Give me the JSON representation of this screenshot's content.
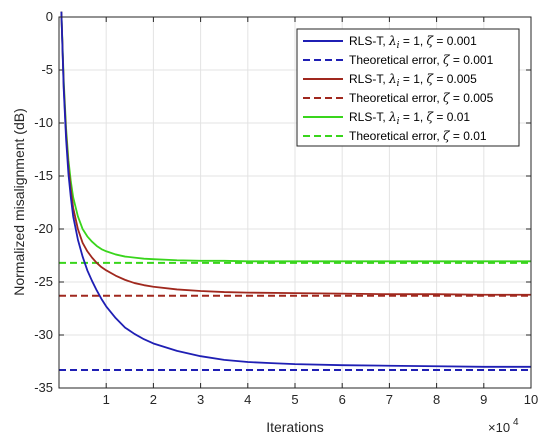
{
  "chart_data": {
    "type": "line",
    "xlabel": "Iterations",
    "ylabel": "Normalized misalignment (dB)",
    "x_multiplier_label": "×10",
    "x_multiplier_exp": "4",
    "xlim": [
      0,
      10
    ],
    "ylim": [
      -35,
      0
    ],
    "x_ticks": [
      "1",
      "2",
      "3",
      "4",
      "5",
      "6",
      "7",
      "8",
      "9",
      "10"
    ],
    "y_ticks": [
      "0",
      "-5",
      "-10",
      "-15",
      "-20",
      "-25",
      "-30",
      "-35"
    ],
    "grid": true,
    "legend_position": "top-right",
    "legend_entries": [
      {
        "label": "RLS-T, ",
        "sym1": "λ",
        "sub": "i",
        "eq1": " = 1, ",
        "sym2": "ζ",
        "eq2": " = 0.001",
        "color": "#1f1fb4",
        "dashed": false
      },
      {
        "label": "Theoretical error, ",
        "sym1": "",
        "sub": "",
        "eq1": "",
        "sym2": "ζ",
        "eq2": " = 0.001",
        "color": "#1f1fb4",
        "dashed": true
      },
      {
        "label": "RLS-T, ",
        "sym1": "λ",
        "sub": "i",
        "eq1": " = 1, ",
        "sym2": "ζ",
        "eq2": " = 0.005",
        "color": "#a0281e",
        "dashed": false
      },
      {
        "label": "Theoretical error, ",
        "sym1": "",
        "sub": "",
        "eq1": "",
        "sym2": "ζ",
        "eq2": " = 0.005",
        "color": "#a0281e",
        "dashed": true
      },
      {
        "label": "RLS-T, ",
        "sym1": "λ",
        "sub": "i",
        "eq1": " = 1, ",
        "sym2": "ζ",
        "eq2": " = 0.01",
        "color": "#39d51c",
        "dashed": false
      },
      {
        "label": "Theoretical error, ",
        "sym1": "",
        "sub": "",
        "eq1": "",
        "sym2": "ζ",
        "eq2": " = 0.01",
        "color": "#39d51c",
        "dashed": true
      }
    ],
    "series": [
      {
        "color": "#39d51c",
        "x": [
          0.05,
          0.1,
          0.15,
          0.2,
          0.25,
          0.3,
          0.4,
          0.5,
          0.6,
          0.7,
          0.8,
          0.9,
          1.0,
          1.2,
          1.4,
          1.6,
          1.8,
          2.0,
          2.5,
          3.0,
          3.5,
          4.0,
          5.0,
          6.0,
          7.0,
          8.0,
          9.0,
          10.0
        ],
        "values": [
          0.5,
          -6.0,
          -10.5,
          -13.5,
          -15.5,
          -17.0,
          -18.8,
          -20.0,
          -20.7,
          -21.2,
          -21.6,
          -21.9,
          -22.1,
          -22.4,
          -22.6,
          -22.7,
          -22.8,
          -22.85,
          -22.95,
          -23.0,
          -23.0,
          -23.05,
          -23.05,
          -23.05,
          -23.05,
          -23.05,
          -23.05,
          -23.05
        ]
      },
      {
        "color": "#a0281e",
        "x": [
          0.05,
          0.1,
          0.15,
          0.2,
          0.25,
          0.3,
          0.4,
          0.5,
          0.6,
          0.7,
          0.8,
          0.9,
          1.0,
          1.2,
          1.4,
          1.6,
          1.8,
          2.0,
          2.5,
          3.0,
          3.5,
          4.0,
          5.0,
          6.0,
          7.0,
          8.0,
          9.0,
          10.0
        ],
        "values": [
          0.5,
          -6.5,
          -11.0,
          -14.2,
          -16.3,
          -18.0,
          -20.0,
          -21.3,
          -22.1,
          -22.7,
          -23.2,
          -23.6,
          -23.9,
          -24.4,
          -24.8,
          -25.1,
          -25.3,
          -25.45,
          -25.7,
          -25.85,
          -25.95,
          -26.0,
          -26.05,
          -26.1,
          -26.15,
          -26.15,
          -26.2,
          -26.2
        ]
      },
      {
        "color": "#1f1fb4",
        "x": [
          0.05,
          0.1,
          0.15,
          0.2,
          0.25,
          0.3,
          0.4,
          0.5,
          0.6,
          0.7,
          0.8,
          0.9,
          1.0,
          1.2,
          1.4,
          1.6,
          1.8,
          2.0,
          2.5,
          3.0,
          3.5,
          4.0,
          4.5,
          5.0,
          6.0,
          7.0,
          8.0,
          9.0,
          10.0
        ],
        "values": [
          0.5,
          -6.8,
          -11.5,
          -14.8,
          -17.0,
          -18.8,
          -21.0,
          -22.6,
          -23.9,
          -24.9,
          -25.8,
          -26.6,
          -27.3,
          -28.4,
          -29.3,
          -29.9,
          -30.4,
          -30.8,
          -31.5,
          -32.0,
          -32.35,
          -32.55,
          -32.65,
          -32.75,
          -32.85,
          -32.9,
          -32.95,
          -33.0,
          -33.0
        ]
      }
    ],
    "theoretical": [
      {
        "color": "#39d51c",
        "value": -23.2
      },
      {
        "color": "#a0281e",
        "value": -26.3
      },
      {
        "color": "#1f1fb4",
        "value": -33.3
      }
    ]
  }
}
